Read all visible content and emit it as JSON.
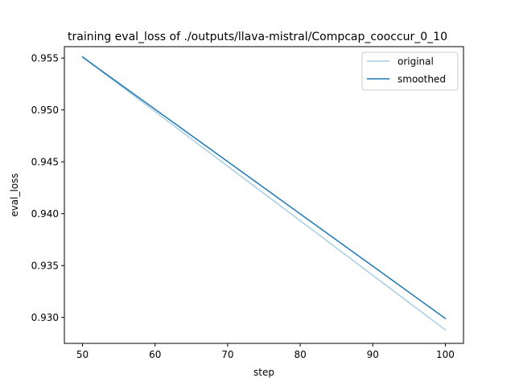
{
  "chart_data": {
    "type": "line",
    "title": "training eval_loss of ./outputs/llava-mistral/Compcap_cooccur_0_10",
    "xlabel": "step",
    "ylabel": "eval_loss",
    "xlim": [
      47.5,
      102.5
    ],
    "ylim": [
      0.9275,
      0.9561
    ],
    "x_ticks": [
      50,
      60,
      70,
      80,
      90,
      100
    ],
    "y_ticks": [
      0.93,
      0.935,
      0.94,
      0.945,
      0.95,
      0.955
    ],
    "x_tick_labels": [
      "50",
      "60",
      "70",
      "80",
      "90",
      "100"
    ],
    "y_tick_labels": [
      "0.930",
      "0.935",
      "0.940",
      "0.945",
      "0.950",
      "0.955"
    ],
    "grid": false,
    "legend_position": "upper right",
    "series": [
      {
        "name": "original",
        "x": [
          50,
          100
        ],
        "y": [
          0.9551,
          0.9288
        ],
        "color": "#a6cee3"
      },
      {
        "name": "smoothed",
        "x": [
          50,
          100
        ],
        "y": [
          0.9551,
          0.9299
        ],
        "color": "#1f78b4"
      }
    ]
  }
}
